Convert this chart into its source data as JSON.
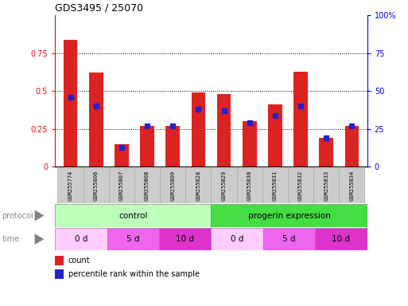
{
  "title": "GDS3495 / 25070",
  "samples": [
    "GSM255774",
    "GSM255806",
    "GSM255807",
    "GSM255808",
    "GSM255809",
    "GSM255828",
    "GSM255829",
    "GSM255830",
    "GSM255831",
    "GSM255832",
    "GSM255833",
    "GSM255834"
  ],
  "count_values": [
    0.84,
    0.62,
    0.15,
    0.27,
    0.27,
    0.49,
    0.48,
    0.3,
    0.41,
    0.63,
    0.19,
    0.27
  ],
  "percentile_values": [
    0.46,
    0.4,
    0.13,
    0.27,
    0.27,
    0.38,
    0.37,
    0.29,
    0.34,
    0.4,
    0.19,
    0.27
  ],
  "ylim": [
    0,
    1.0
  ],
  "y2lim": [
    0,
    100
  ],
  "yticks": [
    0,
    0.25,
    0.5,
    0.75
  ],
  "ytick_labels": [
    "0",
    "0.25",
    "0.5",
    "0.75"
  ],
  "y2ticks": [
    0,
    25,
    50,
    75,
    100
  ],
  "y2tick_labels": [
    "0",
    "25",
    "50",
    "75",
    "100%"
  ],
  "bar_color": "#dd2222",
  "dot_color": "#2222cc",
  "bar_width": 0.55,
  "protocol_labels": [
    "control",
    "progerin expression"
  ],
  "protocol_colors": [
    "#bbffbb",
    "#44dd44"
  ],
  "time_labels": [
    "0 d",
    "5 d",
    "10 d",
    "0 d",
    "5 d",
    "10 d"
  ],
  "time_colors": [
    "#ffccff",
    "#ee66ee",
    "#dd33cc",
    "#ffccff",
    "#ee66ee",
    "#dd33cc"
  ],
  "legend_count_label": "count",
  "legend_pct_label": "percentile rank within the sample",
  "tick_label_bg": "#cccccc",
  "grid_color": "#555555",
  "left_label_color": "#888888"
}
